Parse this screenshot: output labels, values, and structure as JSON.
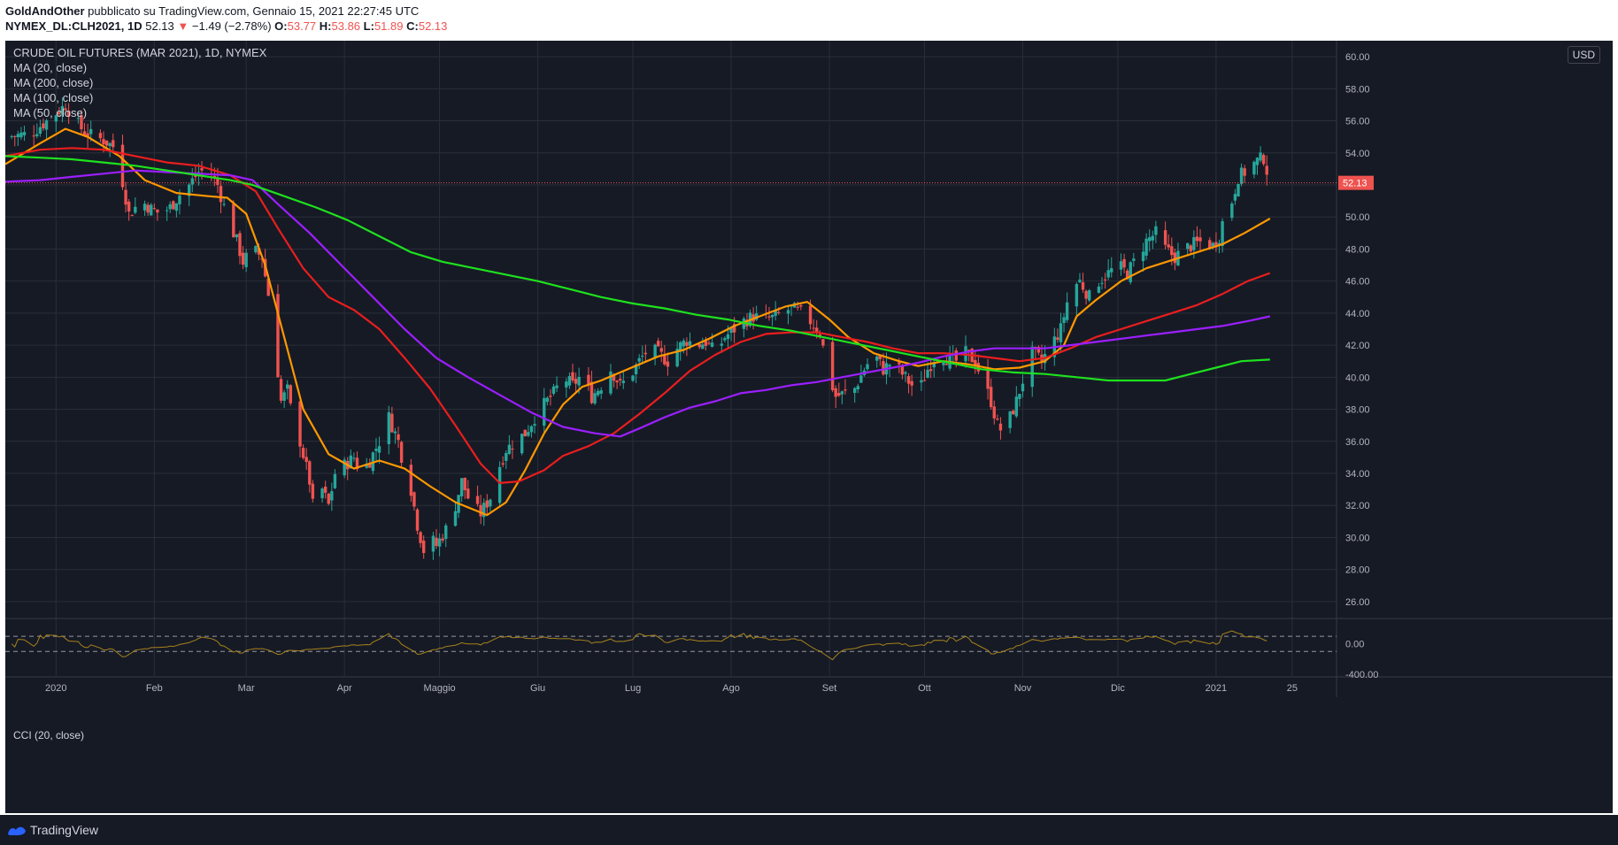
{
  "header": {
    "author": "GoldAndOther",
    "published_text": "pubblicato su TradingView.com, Gennaio 15, 2021 22:27:45 UTC",
    "symbol": "NYMEX_DL:CLH2021, 1D",
    "last": "52.13",
    "down_arrow": "▼",
    "change": "−1.49 (−2.78%)",
    "open_label": "O:",
    "open": "53.77",
    "high_label": "H:",
    "high": "53.86",
    "low_label": "L:",
    "low": "51.89",
    "close_label": "C:",
    "close": "52.13"
  },
  "legend": {
    "title": "CRUDE OIL FUTURES (MAR 2021), 1D, NYMEX",
    "ma20": "MA (20, close)",
    "ma200": "MA (200, close)",
    "ma100": "MA (100, close)",
    "ma50": "MA (50, close)"
  },
  "currency": "USD",
  "cci_label": "CCI (20, close)",
  "last_price_tag": "52.13",
  "footer": {
    "brand": "TradingView",
    "logo_icon": "tradingview-logo-icon"
  },
  "colors": {
    "up": "#26a69a",
    "down": "#ef5350",
    "ma20": "#ff9800",
    "ma50": "#e91e1e",
    "ma100": "#9c1fff",
    "ma200": "#1ee11e",
    "cci": "#a7821b",
    "grid": "#2a2e39"
  },
  "chart_data": {
    "type": "candlestick",
    "title": "CRUDE OIL FUTURES (MAR 2021), 1D, NYMEX",
    "ylim": [
      25,
      61
    ],
    "y_ticks": [
      "26.00",
      "28.00",
      "30.00",
      "32.00",
      "34.00",
      "36.00",
      "38.00",
      "40.00",
      "42.00",
      "44.00",
      "46.00",
      "48.00",
      "50.00",
      "52.00",
      "54.00",
      "56.00",
      "58.00",
      "60.00"
    ],
    "x_ticks": [
      "2020",
      "Feb",
      "Mar",
      "Apr",
      "Maggio",
      "Giu",
      "Lug",
      "Ago",
      "Set",
      "Ott",
      "Nov",
      "Dic",
      "2021",
      "25"
    ],
    "x_tick_days": [
      0,
      31,
      60,
      91,
      121,
      152,
      182,
      213,
      244,
      274,
      305,
      335,
      366,
      390
    ],
    "x_range_days": [
      -16,
      404
    ],
    "close_anchors": [
      [
        -16,
        55.0
      ],
      [
        -8,
        55.2
      ],
      [
        -1,
        56.3
      ],
      [
        3,
        57.0
      ],
      [
        6,
        56.0
      ],
      [
        9,
        55.3
      ],
      [
        12,
        55.0
      ],
      [
        15,
        54.8
      ],
      [
        18,
        54.4
      ],
      [
        21,
        52.2
      ],
      [
        23,
        50.2
      ],
      [
        27,
        51.0
      ],
      [
        30,
        50.5
      ],
      [
        33,
        50.2
      ],
      [
        36,
        50.6
      ],
      [
        39,
        51.4
      ],
      [
        42,
        52.0
      ],
      [
        45,
        52.8
      ],
      [
        48,
        53.0
      ],
      [
        51,
        52.0
      ],
      [
        54,
        50.0
      ],
      [
        57,
        48.5
      ],
      [
        59,
        47.2
      ],
      [
        62,
        48.0
      ],
      [
        65,
        47.5
      ],
      [
        68,
        44.0
      ],
      [
        71,
        38.5
      ],
      [
        73,
        39.2
      ],
      [
        75,
        37.0
      ],
      [
        77,
        36.0
      ],
      [
        80,
        33.5
      ],
      [
        82,
        30.5
      ],
      [
        84,
        33.0
      ],
      [
        86,
        32.0
      ],
      [
        88,
        34.0
      ],
      [
        91,
        34.5
      ],
      [
        94,
        35.0
      ],
      [
        96,
        34.0
      ],
      [
        99,
        34.8
      ],
      [
        102,
        36.0
      ],
      [
        105,
        37.5
      ],
      [
        108,
        36.0
      ],
      [
        110,
        34.2
      ],
      [
        112,
        33.0
      ],
      [
        114,
        30.8
      ],
      [
        116,
        29.2
      ],
      [
        118,
        30.0
      ],
      [
        120,
        29.5
      ],
      [
        123,
        30.5
      ],
      [
        126,
        32.0
      ],
      [
        128,
        33.5
      ],
      [
        131,
        32.0
      ],
      [
        134,
        31.5
      ],
      [
        137,
        32.5
      ],
      [
        139,
        34.0
      ],
      [
        142,
        35.5
      ],
      [
        145,
        36.0
      ],
      [
        148,
        36.5
      ],
      [
        151,
        37.5
      ],
      [
        154,
        38.3
      ],
      [
        157,
        39.0
      ],
      [
        160,
        40.0
      ],
      [
        163,
        39.5
      ],
      [
        166,
        40.2
      ],
      [
        169,
        38.8
      ],
      [
        172,
        39.5
      ],
      [
        175,
        40.5
      ],
      [
        178,
        39.5
      ],
      [
        181,
        40.0
      ],
      [
        184,
        41.0
      ],
      [
        187,
        41.8
      ],
      [
        190,
        41.5
      ],
      [
        193,
        41.0
      ],
      [
        196,
        41.8
      ],
      [
        199,
        42.3
      ],
      [
        202,
        42.0
      ],
      [
        205,
        42.2
      ],
      [
        208,
        41.5
      ],
      [
        211,
        42.5
      ],
      [
        214,
        43.0
      ],
      [
        217,
        43.5
      ],
      [
        220,
        43.8
      ],
      [
        223,
        43.6
      ],
      [
        226,
        43.7
      ],
      [
        229,
        44.0
      ],
      [
        232,
        44.3
      ],
      [
        235,
        44.0
      ],
      [
        238,
        43.5
      ],
      [
        241,
        42.8
      ],
      [
        244,
        40.0
      ],
      [
        246,
        38.8
      ],
      [
        249,
        39.0
      ],
      [
        252,
        39.3
      ],
      [
        255,
        40.5
      ],
      [
        258,
        41.5
      ],
      [
        261,
        40.5
      ],
      [
        264,
        41.0
      ],
      [
        267,
        40.2
      ],
      [
        270,
        39.5
      ],
      [
        272,
        39.0
      ],
      [
        275,
        40.5
      ],
      [
        278,
        41.5
      ],
      [
        281,
        41.2
      ],
      [
        284,
        41.0
      ],
      [
        287,
        41.5
      ],
      [
        290,
        41.0
      ],
      [
        293,
        39.5
      ],
      [
        295,
        38.5
      ],
      [
        297,
        37.0
      ],
      [
        299,
        36.5
      ],
      [
        301,
        37.5
      ],
      [
        303,
        38.5
      ],
      [
        305,
        39.8
      ],
      [
        308,
        41.5
      ],
      [
        311,
        41.0
      ],
      [
        314,
        42.0
      ],
      [
        317,
        43.0
      ],
      [
        320,
        45.5
      ],
      [
        323,
        46.0
      ],
      [
        326,
        45.0
      ],
      [
        329,
        46.0
      ],
      [
        332,
        46.5
      ],
      [
        335,
        47.0
      ],
      [
        338,
        46.5
      ],
      [
        341,
        47.5
      ],
      [
        344,
        48.5
      ],
      [
        347,
        49.0
      ],
      [
        350,
        48.0
      ],
      [
        353,
        47.5
      ],
      [
        356,
        48.0
      ],
      [
        359,
        48.3
      ],
      [
        362,
        48.5
      ],
      [
        365,
        48.2
      ],
      [
        367,
        48.8
      ],
      [
        369,
        50.5
      ],
      [
        371,
        51.0
      ],
      [
        373,
        52.5
      ],
      [
        375,
        52.8
      ],
      [
        377,
        53.2
      ],
      [
        379,
        53.5
      ],
      [
        381,
        53.7
      ],
      [
        383,
        52.13
      ]
    ],
    "moving_averages": [
      {
        "name": "MA (20, close)",
        "color": "#ff9800",
        "points": [
          [
            -16,
            53.3
          ],
          [
            -5,
            54.6
          ],
          [
            3,
            55.5
          ],
          [
            10,
            55.0
          ],
          [
            20,
            53.8
          ],
          [
            28,
            52.3
          ],
          [
            38,
            51.5
          ],
          [
            48,
            51.3
          ],
          [
            54,
            51.2
          ],
          [
            60,
            50.2
          ],
          [
            66,
            47.0
          ],
          [
            72,
            42.5
          ],
          [
            78,
            38.0
          ],
          [
            86,
            35.2
          ],
          [
            94,
            34.3
          ],
          [
            102,
            34.8
          ],
          [
            110,
            34.3
          ],
          [
            118,
            33.2
          ],
          [
            126,
            32.2
          ],
          [
            136,
            31.4
          ],
          [
            142,
            32.2
          ],
          [
            148,
            34.2
          ],
          [
            154,
            36.5
          ],
          [
            160,
            38.3
          ],
          [
            166,
            39.4
          ],
          [
            172,
            39.8
          ],
          [
            178,
            40.3
          ],
          [
            184,
            40.8
          ],
          [
            190,
            41.3
          ],
          [
            198,
            41.7
          ],
          [
            206,
            42.4
          ],
          [
            214,
            43.2
          ],
          [
            222,
            43.8
          ],
          [
            230,
            44.4
          ],
          [
            237,
            44.7
          ],
          [
            244,
            43.6
          ],
          [
            250,
            42.5
          ],
          [
            258,
            41.5
          ],
          [
            266,
            41.0
          ],
          [
            272,
            40.7
          ],
          [
            280,
            41.0
          ],
          [
            288,
            40.8
          ],
          [
            296,
            40.5
          ],
          [
            304,
            40.6
          ],
          [
            312,
            41.0
          ],
          [
            318,
            42.0
          ],
          [
            322,
            43.8
          ],
          [
            328,
            44.8
          ],
          [
            336,
            46.0
          ],
          [
            344,
            46.8
          ],
          [
            352,
            47.3
          ],
          [
            360,
            47.8
          ],
          [
            368,
            48.3
          ],
          [
            375,
            49.0
          ],
          [
            383,
            49.9
          ]
        ]
      },
      {
        "name": "MA (50, close)",
        "color": "#e91e1e",
        "points": [
          [
            -16,
            53.8
          ],
          [
            -5,
            54.2
          ],
          [
            5,
            54.3
          ],
          [
            15,
            54.2
          ],
          [
            25,
            53.8
          ],
          [
            35,
            53.4
          ],
          [
            45,
            53.2
          ],
          [
            55,
            52.6
          ],
          [
            63,
            51.6
          ],
          [
            70,
            49.3
          ],
          [
            78,
            46.8
          ],
          [
            86,
            45.0
          ],
          [
            94,
            44.2
          ],
          [
            102,
            43.0
          ],
          [
            110,
            41.2
          ],
          [
            118,
            39.3
          ],
          [
            126,
            37.0
          ],
          [
            134,
            34.6
          ],
          [
            140,
            33.4
          ],
          [
            146,
            33.5
          ],
          [
            154,
            34.2
          ],
          [
            160,
            35.1
          ],
          [
            168,
            35.7
          ],
          [
            176,
            36.5
          ],
          [
            184,
            37.7
          ],
          [
            192,
            39.0
          ],
          [
            200,
            40.4
          ],
          [
            208,
            41.4
          ],
          [
            216,
            42.2
          ],
          [
            224,
            42.7
          ],
          [
            232,
            42.8
          ],
          [
            240,
            42.8
          ],
          [
            248,
            42.5
          ],
          [
            256,
            42.2
          ],
          [
            264,
            41.8
          ],
          [
            272,
            41.5
          ],
          [
            280,
            41.5
          ],
          [
            288,
            41.4
          ],
          [
            296,
            41.2
          ],
          [
            304,
            41.0
          ],
          [
            312,
            41.2
          ],
          [
            320,
            41.8
          ],
          [
            328,
            42.5
          ],
          [
            336,
            43.0
          ],
          [
            344,
            43.5
          ],
          [
            352,
            44.0
          ],
          [
            360,
            44.5
          ],
          [
            368,
            45.2
          ],
          [
            376,
            46.0
          ],
          [
            383,
            46.5
          ]
        ]
      },
      {
        "name": "MA (100, close)",
        "color": "#9c1fff",
        "points": [
          [
            -16,
            52.2
          ],
          [
            -5,
            52.3
          ],
          [
            5,
            52.5
          ],
          [
            15,
            52.7
          ],
          [
            25,
            52.9
          ],
          [
            35,
            52.8
          ],
          [
            45,
            52.7
          ],
          [
            55,
            52.6
          ],
          [
            62,
            52.3
          ],
          [
            70,
            50.8
          ],
          [
            80,
            49.0
          ],
          [
            90,
            47.0
          ],
          [
            100,
            45.0
          ],
          [
            110,
            43.0
          ],
          [
            120,
            41.2
          ],
          [
            130,
            40.0
          ],
          [
            140,
            38.9
          ],
          [
            150,
            37.8
          ],
          [
            160,
            36.9
          ],
          [
            170,
            36.5
          ],
          [
            178,
            36.3
          ],
          [
            184,
            36.8
          ],
          [
            192,
            37.5
          ],
          [
            200,
            38.1
          ],
          [
            208,
            38.5
          ],
          [
            216,
            39.0
          ],
          [
            224,
            39.2
          ],
          [
            232,
            39.5
          ],
          [
            240,
            39.7
          ],
          [
            248,
            40.0
          ],
          [
            256,
            40.3
          ],
          [
            264,
            40.6
          ],
          [
            272,
            40.9
          ],
          [
            280,
            41.3
          ],
          [
            288,
            41.6
          ],
          [
            296,
            41.8
          ],
          [
            304,
            41.8
          ],
          [
            312,
            41.8
          ],
          [
            320,
            42.0
          ],
          [
            328,
            42.2
          ],
          [
            336,
            42.4
          ],
          [
            344,
            42.6
          ],
          [
            352,
            42.8
          ],
          [
            360,
            43.0
          ],
          [
            368,
            43.2
          ],
          [
            376,
            43.5
          ],
          [
            383,
            43.8
          ]
        ]
      },
      {
        "name": "MA (200, close)",
        "color": "#1ee11e",
        "points": [
          [
            -16,
            53.8
          ],
          [
            -5,
            53.7
          ],
          [
            5,
            53.6
          ],
          [
            15,
            53.4
          ],
          [
            25,
            53.2
          ],
          [
            35,
            52.9
          ],
          [
            45,
            52.6
          ],
          [
            55,
            52.3
          ],
          [
            62,
            52.0
          ],
          [
            72,
            51.3
          ],
          [
            82,
            50.6
          ],
          [
            92,
            49.8
          ],
          [
            102,
            48.8
          ],
          [
            112,
            47.8
          ],
          [
            122,
            47.2
          ],
          [
            132,
            46.8
          ],
          [
            142,
            46.4
          ],
          [
            152,
            46.0
          ],
          [
            162,
            45.5
          ],
          [
            172,
            45.0
          ],
          [
            182,
            44.6
          ],
          [
            192,
            44.3
          ],
          [
            202,
            43.9
          ],
          [
            212,
            43.6
          ],
          [
            222,
            43.2
          ],
          [
            232,
            42.9
          ],
          [
            242,
            42.5
          ],
          [
            252,
            42.1
          ],
          [
            262,
            41.7
          ],
          [
            272,
            41.3
          ],
          [
            282,
            40.9
          ],
          [
            292,
            40.5
          ],
          [
            302,
            40.3
          ],
          [
            312,
            40.2
          ],
          [
            322,
            40.0
          ],
          [
            332,
            39.8
          ],
          [
            342,
            39.8
          ],
          [
            350,
            39.8
          ],
          [
            358,
            40.2
          ],
          [
            366,
            40.6
          ],
          [
            374,
            41.0
          ],
          [
            383,
            41.1
          ]
        ]
      }
    ],
    "cci": {
      "name": "CCI (20, close)",
      "levels": [
        "0.00",
        "-400.00"
      ],
      "bands": [
        100,
        -100
      ]
    }
  }
}
